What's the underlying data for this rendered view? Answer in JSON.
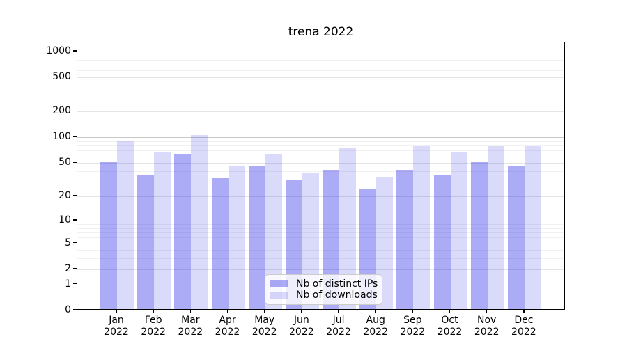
{
  "figure": {
    "title": "trena 2022"
  },
  "chart_data": {
    "type": "bar",
    "title": "trena 2022",
    "categories": [
      "Jan",
      "Feb",
      "Mar",
      "Apr",
      "May",
      "Jun",
      "Jul",
      "Aug",
      "Sep",
      "Oct",
      "Nov",
      "Dec"
    ],
    "year": "2022",
    "series": [
      {
        "name": "Nb of distinct IPs",
        "values": [
          49,
          35,
          62,
          32,
          44,
          30,
          40,
          24,
          40,
          35,
          49,
          44
        ]
      },
      {
        "name": "Nb of downloads",
        "values": [
          88,
          65,
          102,
          44,
          62,
          37,
          72,
          33,
          76,
          65,
          76,
          76
        ]
      }
    ],
    "yscale": "log10(1+v)",
    "yticks": [
      1000,
      500,
      200,
      100,
      50,
      20,
      10,
      5,
      2,
      1,
      0
    ],
    "ylim": [
      0,
      1200
    ],
    "xlabel": "",
    "ylabel": "",
    "grid": true,
    "legend_position": "lower center",
    "colors": {
      "distinct_ips": "rgba(25, 25, 230, 0.36)",
      "downloads": "rgba(25, 25, 230, 0.16)",
      "grid_major": "#c8c8c8",
      "grid_minor": "#f1f1f1"
    }
  }
}
